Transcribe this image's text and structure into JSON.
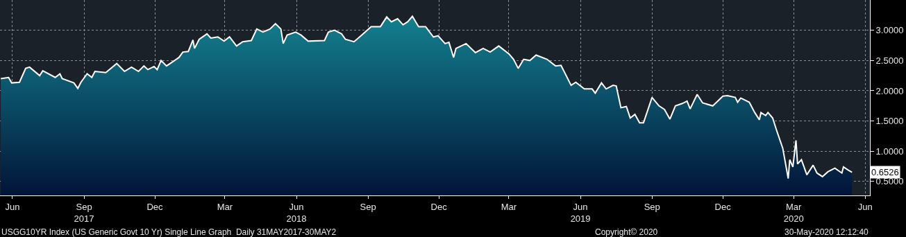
{
  "chart_data": {
    "type": "area",
    "x": [
      "2017-05-31",
      "2017-06-10",
      "2017-06-14",
      "2017-06-24",
      "2017-07-02",
      "2017-07-07",
      "2017-07-20",
      "2017-07-24",
      "2017-08-09",
      "2017-08-15",
      "2017-08-18",
      "2017-09-02",
      "2017-09-07",
      "2017-09-11",
      "2017-09-19",
      "2017-09-25",
      "2017-09-29",
      "2017-10-13",
      "2017-10-27",
      "2017-11-06",
      "2017-11-15",
      "2017-11-24",
      "2017-12-01",
      "2017-12-06",
      "2017-12-14",
      "2017-12-18",
      "2017-12-23",
      "2017-12-30",
      "2018-01-07",
      "2018-01-15",
      "2018-01-20",
      "2018-01-27",
      "2018-02-02",
      "2018-02-04",
      "2018-02-10",
      "2018-02-20",
      "2018-02-25",
      "2018-03-06",
      "2018-03-14",
      "2018-03-21",
      "2018-03-30",
      "2018-04-07",
      "2018-04-18",
      "2018-04-25",
      "2018-05-03",
      "2018-05-12",
      "2018-05-19",
      "2018-05-26",
      "2018-05-29",
      "2018-06-03",
      "2018-06-14",
      "2018-06-21",
      "2018-06-30",
      "2018-07-21",
      "2018-07-26",
      "2018-08-03",
      "2018-08-12",
      "2018-08-17",
      "2018-08-28",
      "2018-09-06",
      "2018-09-19",
      "2018-10-01",
      "2018-10-09",
      "2018-10-15",
      "2018-10-23",
      "2018-10-30",
      "2018-11-05",
      "2018-11-11",
      "2018-11-19",
      "2018-11-28",
      "2018-12-08",
      "2018-12-14",
      "2018-12-23",
      "2018-12-28",
      "2019-01-03",
      "2019-01-06",
      "2019-01-19",
      "2019-01-31",
      "2019-02-10",
      "2019-02-19",
      "2019-03-02",
      "2019-03-15",
      "2019-03-21",
      "2019-03-27",
      "2019-04-03",
      "2019-04-11",
      "2019-04-19",
      "2019-05-03",
      "2019-05-14",
      "2019-05-21",
      "2019-06-03",
      "2019-06-09",
      "2019-06-20",
      "2019-06-30",
      "2019-07-04",
      "2019-07-12",
      "2019-07-18",
      "2019-07-27",
      "2019-07-31",
      "2019-08-06",
      "2019-08-13",
      "2019-08-18",
      "2019-08-24",
      "2019-08-30",
      "2019-09-04",
      "2019-09-15",
      "2019-09-24",
      "2019-10-01",
      "2019-10-08",
      "2019-10-15",
      "2019-10-24",
      "2019-10-30",
      "2019-11-03",
      "2019-11-12",
      "2019-11-19",
      "2019-12-02",
      "2019-12-07",
      "2019-12-15",
      "2019-12-21",
      "2019-12-31",
      "2020-01-03",
      "2020-01-07",
      "2020-01-18",
      "2020-01-25",
      "2020-01-31",
      "2020-02-02",
      "2020-02-08",
      "2020-02-11",
      "2020-02-17",
      "2020-02-22",
      "2020-03-01",
      "2020-03-08",
      "2020-03-10",
      "2020-03-14",
      "2020-03-18",
      "2020-03-20",
      "2020-03-25",
      "2020-04-01",
      "2020-04-09",
      "2020-04-14",
      "2020-04-21",
      "2020-04-28",
      "2020-05-07",
      "2020-05-16",
      "2020-05-18",
      "2020-05-24",
      "2020-05-29"
    ],
    "series": [
      {
        "color": "#ffffff",
        "values": [
          2.2,
          2.22,
          2.13,
          2.14,
          2.37,
          2.39,
          2.25,
          2.33,
          2.22,
          2.28,
          2.2,
          2.13,
          2.04,
          2.14,
          2.28,
          2.22,
          2.32,
          2.3,
          2.45,
          2.32,
          2.39,
          2.32,
          2.41,
          2.35,
          2.4,
          2.35,
          2.5,
          2.41,
          2.48,
          2.55,
          2.64,
          2.65,
          2.84,
          2.7,
          2.85,
          2.94,
          2.87,
          2.89,
          2.82,
          2.89,
          2.74,
          2.81,
          2.83,
          3.02,
          2.97,
          3.02,
          3.11,
          3.02,
          2.78,
          2.92,
          2.97,
          2.92,
          2.82,
          2.83,
          2.97,
          3.0,
          2.94,
          2.85,
          2.81,
          2.91,
          3.06,
          3.06,
          3.22,
          3.14,
          3.19,
          3.09,
          3.14,
          3.23,
          3.06,
          3.06,
          2.89,
          2.91,
          2.78,
          2.8,
          2.55,
          2.7,
          2.78,
          2.63,
          2.7,
          2.64,
          2.74,
          2.61,
          2.52,
          2.37,
          2.52,
          2.5,
          2.59,
          2.52,
          2.41,
          2.42,
          2.09,
          2.14,
          2.03,
          2.03,
          1.96,
          2.13,
          2.03,
          2.09,
          2.08,
          1.72,
          1.74,
          1.55,
          1.61,
          1.47,
          1.47,
          1.89,
          1.75,
          1.69,
          1.53,
          1.75,
          1.79,
          1.83,
          1.7,
          1.94,
          1.8,
          1.75,
          1.81,
          1.91,
          1.92,
          1.89,
          1.81,
          1.88,
          1.81,
          1.64,
          1.52,
          1.64,
          1.59,
          1.64,
          1.55,
          1.35,
          1.05,
          0.55,
          0.86,
          0.74,
          1.18,
          0.79,
          0.86,
          0.61,
          0.77,
          0.64,
          0.58,
          0.66,
          0.72,
          0.64,
          0.74,
          0.69,
          0.6526
        ]
      }
    ],
    "xlim": [
      "2017-05-30",
      "2020-06-21"
    ],
    "xticks": [
      {
        "value": "2017-06-15",
        "label": "Jun"
      },
      {
        "value": "2017-09-15",
        "label": "Sep\n2017"
      },
      {
        "value": "2017-12-15",
        "label": "Dec"
      },
      {
        "value": "2018-03-15",
        "label": "Mar"
      },
      {
        "value": "2018-06-15",
        "label": "Jun\n2018"
      },
      {
        "value": "2018-09-15",
        "label": "Sep"
      },
      {
        "value": "2018-12-15",
        "label": "Dec"
      },
      {
        "value": "2019-03-15",
        "label": "Mar"
      },
      {
        "value": "2019-06-15",
        "label": "Jun\n2019"
      },
      {
        "value": "2019-09-15",
        "label": "Sep"
      },
      {
        "value": "2019-12-15",
        "label": "Dec"
      },
      {
        "value": "2020-03-15",
        "label": "Mar\n2020"
      },
      {
        "value": "2020-06-15",
        "label": "Jun"
      }
    ],
    "ylim": [
      0.27,
      3.5
    ],
    "yticks": [
      {
        "value": 0.5,
        "label": "0.5000"
      },
      {
        "value": 1,
        "label": "1.0000"
      },
      {
        "value": 1.5,
        "label": "1.5000"
      },
      {
        "value": 2,
        "label": "2.0000"
      },
      {
        "value": 2.5,
        "label": "2.5000"
      },
      {
        "value": 3,
        "label": "3.0000"
      }
    ],
    "grid": true,
    "annotations": [
      {
        "text": "0.6526",
        "x": "2020-05-29",
        "y": 0.6526
      },
      "USGG10YR Index (US Generic Govt 10 Yr) Single Line Graph  Daily 31MAY2017-30MAY2",
      "Copyright© 2020",
      "30-May-2020 12:12:40"
    ]
  }
}
